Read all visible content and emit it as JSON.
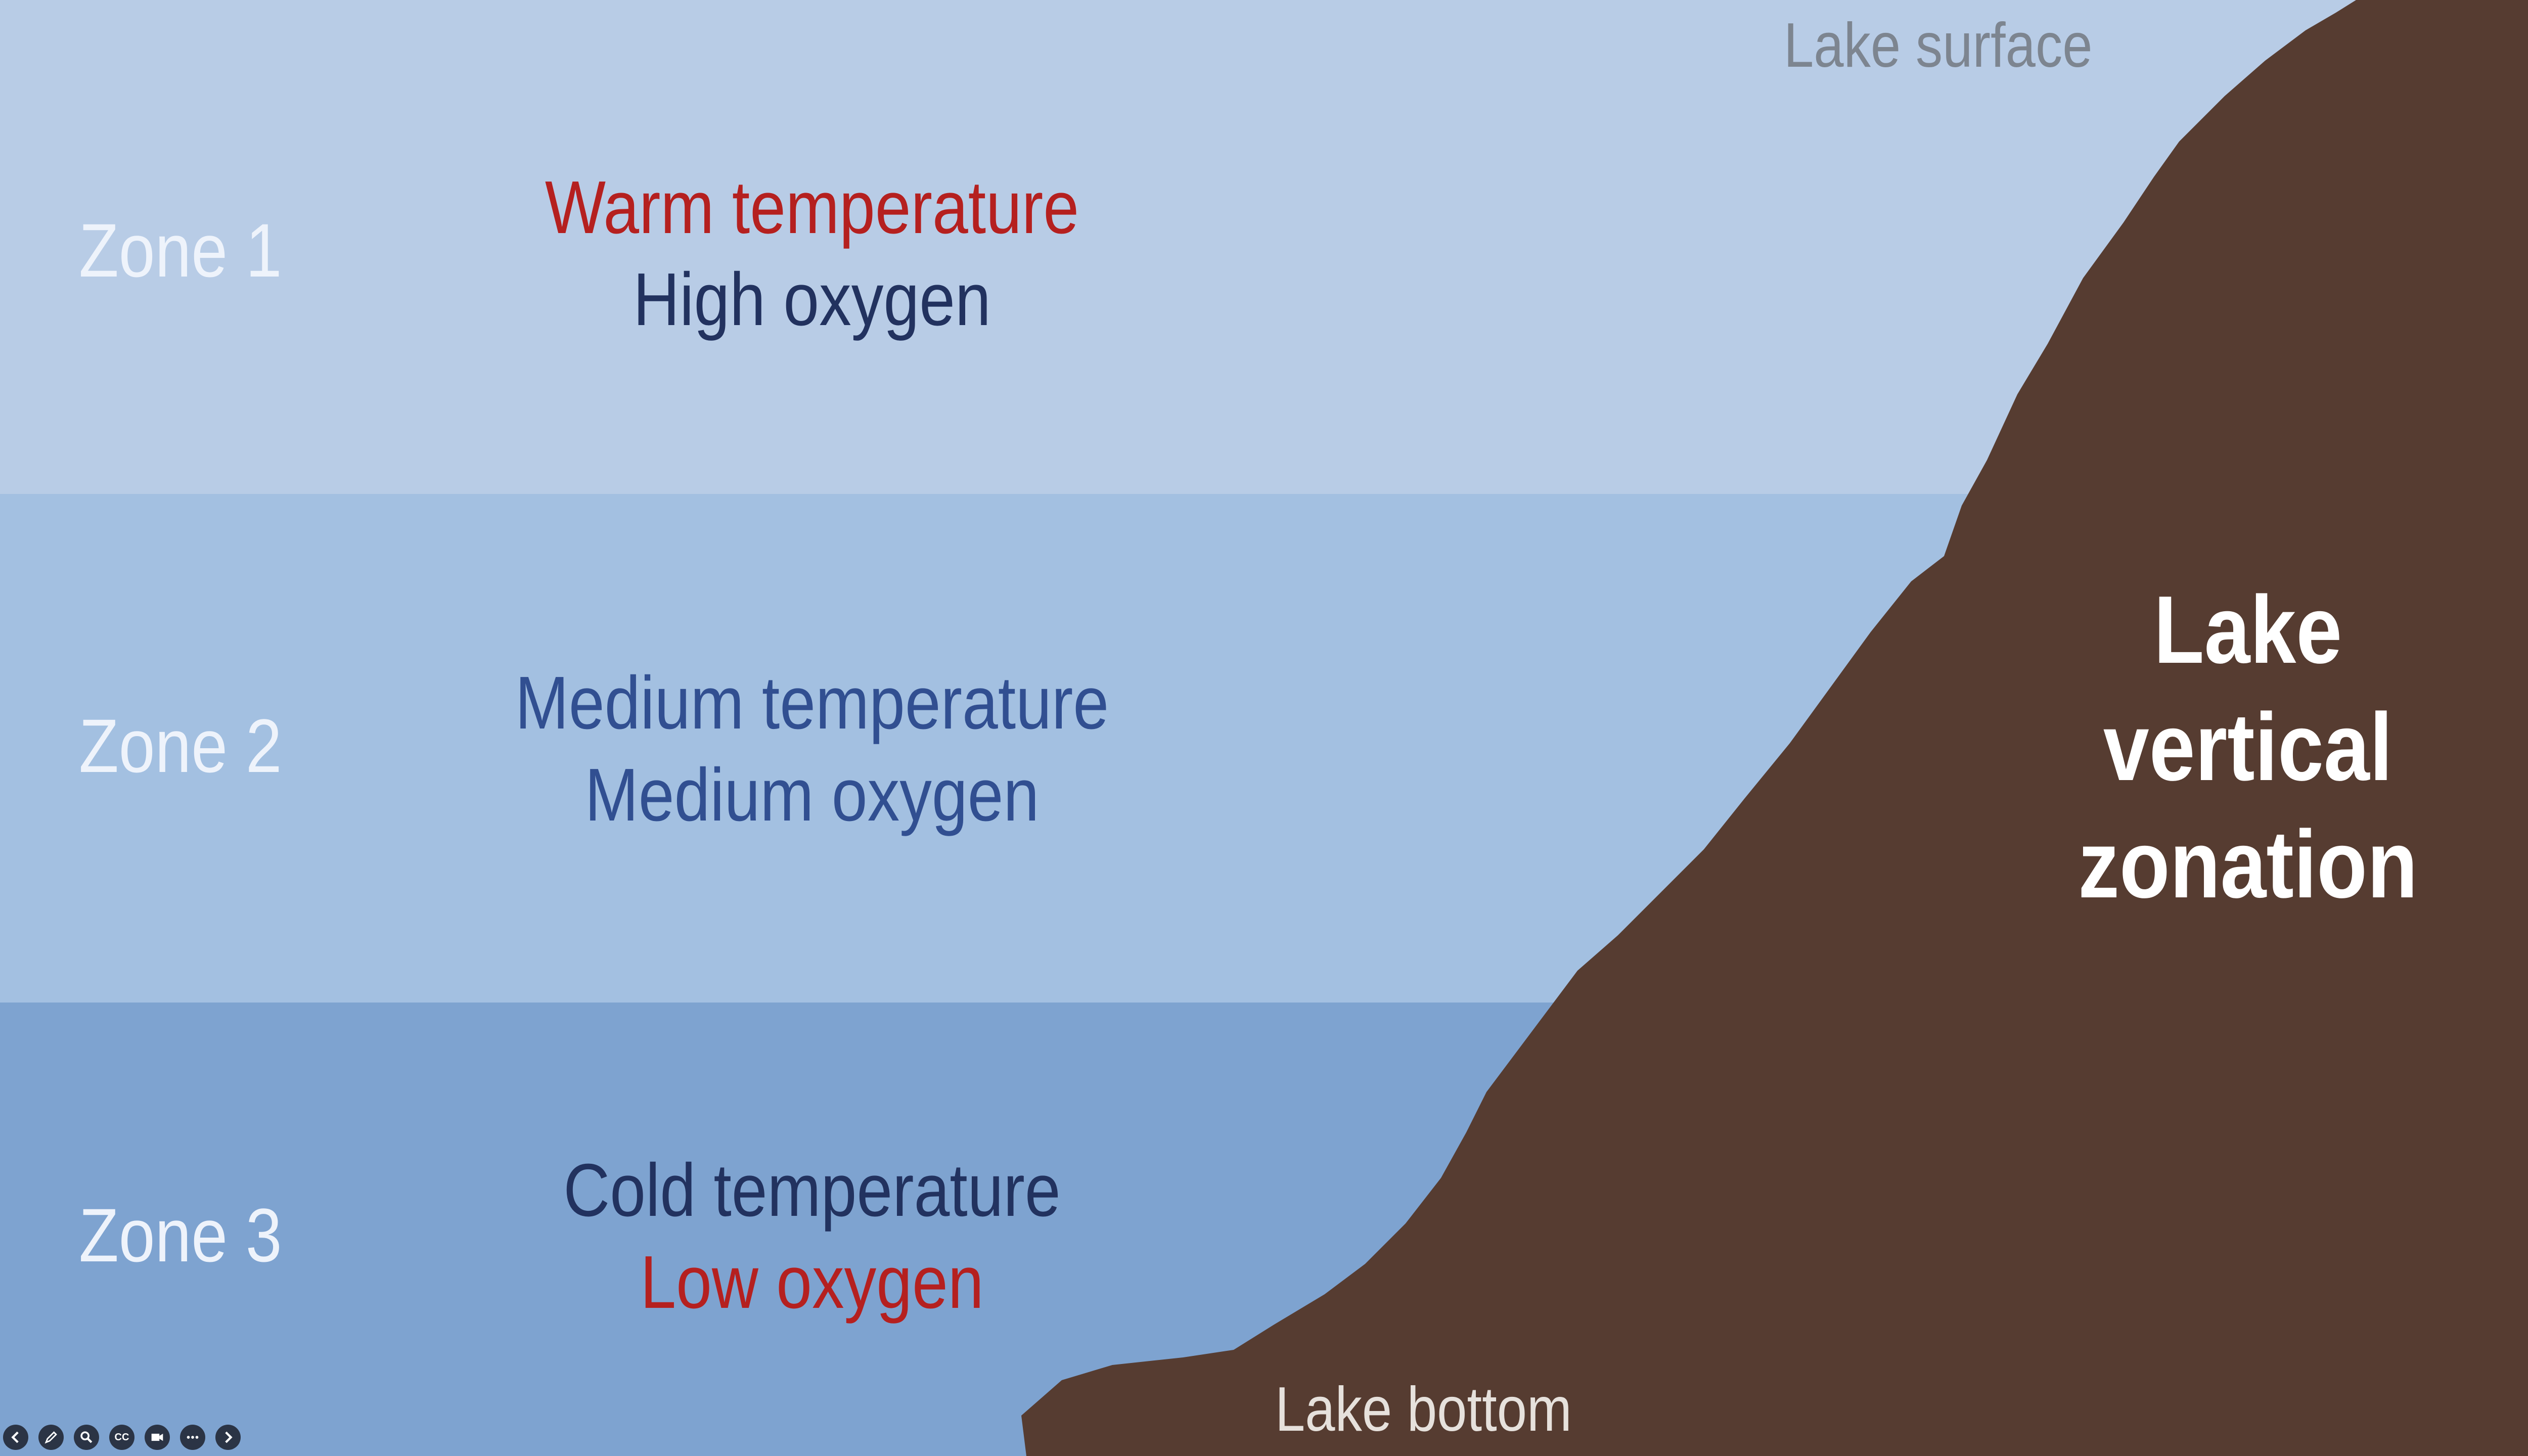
{
  "zones": [
    {
      "label": "Zone 1",
      "temperature": "Warm temperature",
      "oxygen": "High oxygen"
    },
    {
      "label": "Zone 2",
      "temperature": "Medium temperature",
      "oxygen": "Medium oxygen"
    },
    {
      "label": "Zone 3",
      "temperature": "Cold temperature",
      "oxygen": "Low oxygen"
    }
  ],
  "labels": {
    "surface": "Lake surface",
    "bottom": "Lake bottom",
    "title_line1": "Lake",
    "title_line2": "vertical",
    "title_line3": "zonation"
  },
  "colors": {
    "zone1": "#b8cce6",
    "zone2": "#a3c0e1",
    "zone3": "#7ea3d0",
    "lake_bed": "#563c31",
    "warm_or_low": "#b5201f"
  },
  "toolbar": {
    "icons": [
      "back-arrow-icon",
      "pen-icon",
      "zoom-icon",
      "captions-icon",
      "video-icon",
      "more-icon",
      "forward-arrow-icon"
    ],
    "cc_label": "CC"
  }
}
